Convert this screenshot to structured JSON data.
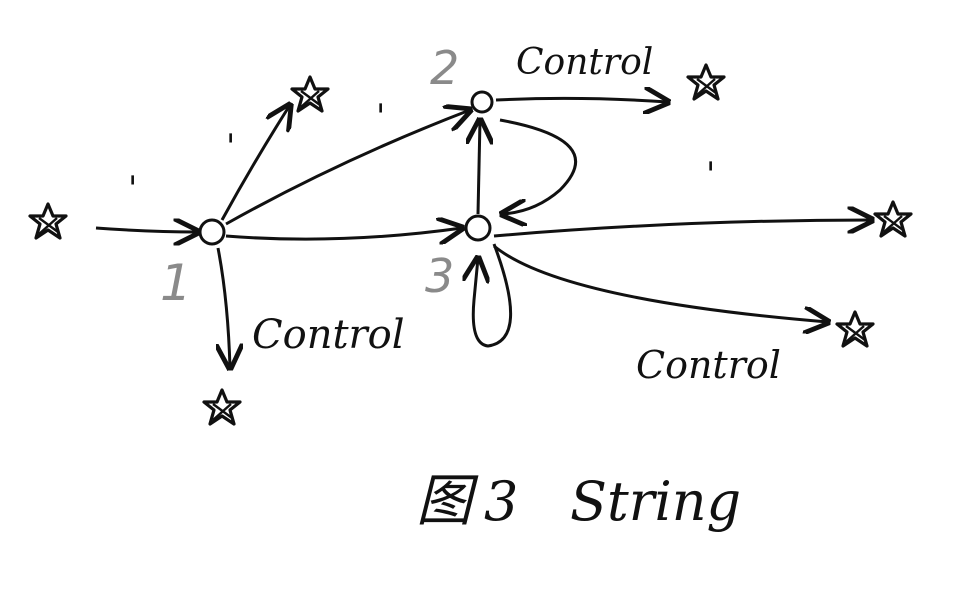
{
  "caption": {
    "glyph": "图",
    "number": "3",
    "text": "String"
  },
  "nodes": [
    {
      "id": "1",
      "label": "1"
    },
    {
      "id": "2",
      "label": "2"
    },
    {
      "id": "3",
      "label": "3"
    }
  ],
  "edge_labels": {
    "prime": "'",
    "control": "Control"
  },
  "colors": {
    "ink": "#111111",
    "node_label": "#8a8a8a",
    "background": "#ffffff"
  }
}
